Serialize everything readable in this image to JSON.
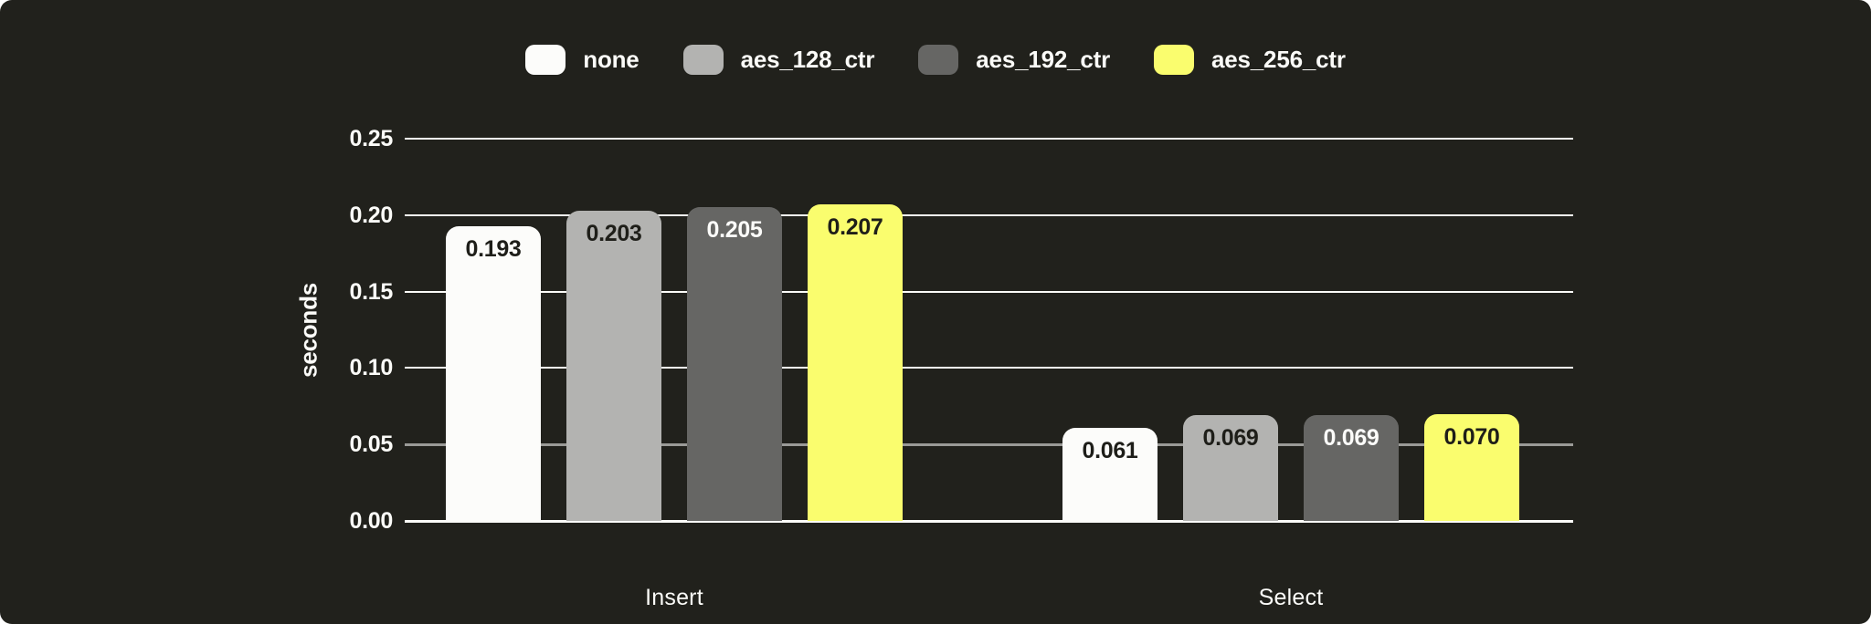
{
  "canvas": {
    "page_bg": "#ffffff",
    "card_bg": "#21211c",
    "text_color": "#fbfbf8"
  },
  "legend": {
    "items": [
      {
        "label": "none",
        "swatch_color": "#fcfcfa"
      },
      {
        "label": "aes_128_ctr",
        "swatch_color": "#b3b3b1"
      },
      {
        "label": "aes_192_ctr",
        "swatch_color": "#666664"
      },
      {
        "label": "aes_256_ctr",
        "swatch_color": "#fafd6e"
      }
    ]
  },
  "chart_data": {
    "type": "bar",
    "title": "",
    "xlabel": "",
    "ylabel": "seconds",
    "categories": [
      "Insert",
      "Select"
    ],
    "series": [
      {
        "name": "none",
        "color": "#fcfcfa",
        "value_label_color": "#1e1e19",
        "values": [
          0.193,
          0.061
        ],
        "value_labels": [
          "0.193",
          "0.061"
        ]
      },
      {
        "name": "aes_128_ctr",
        "color": "#b3b3b1",
        "value_label_color": "#1e1e19",
        "values": [
          0.203,
          0.069
        ],
        "value_labels": [
          "0.203",
          "0.069"
        ]
      },
      {
        "name": "aes_192_ctr",
        "color": "#666664",
        "value_label_color": "#fcfcfa",
        "values": [
          0.205,
          0.069
        ],
        "value_labels": [
          "0.205",
          "0.069"
        ]
      },
      {
        "name": "aes_256_ctr",
        "color": "#fafd6e",
        "value_label_color": "#1e1e19",
        "values": [
          0.207,
          0.07
        ],
        "value_labels": [
          "0.207",
          "0.070"
        ]
      }
    ],
    "ylim": [
      0,
      0.25
    ],
    "y_ticks": [
      {
        "value": 0.0,
        "label": "0.00",
        "line_color": "#fbfbf8"
      },
      {
        "value": 0.05,
        "label": "0.05",
        "line_color": "#9a9a97"
      },
      {
        "value": 0.1,
        "label": "0.10",
        "line_color": "#fbfbf8"
      },
      {
        "value": 0.15,
        "label": "0.15",
        "line_color": "#fbfbf8"
      },
      {
        "value": 0.2,
        "label": "0.20",
        "line_color": "#fbfbf8"
      },
      {
        "value": 0.25,
        "label": "0.25",
        "line_color": "#fbfbf8"
      }
    ],
    "grid": true,
    "legend_position": "top-center",
    "bar_value_labels_inside": true
  }
}
